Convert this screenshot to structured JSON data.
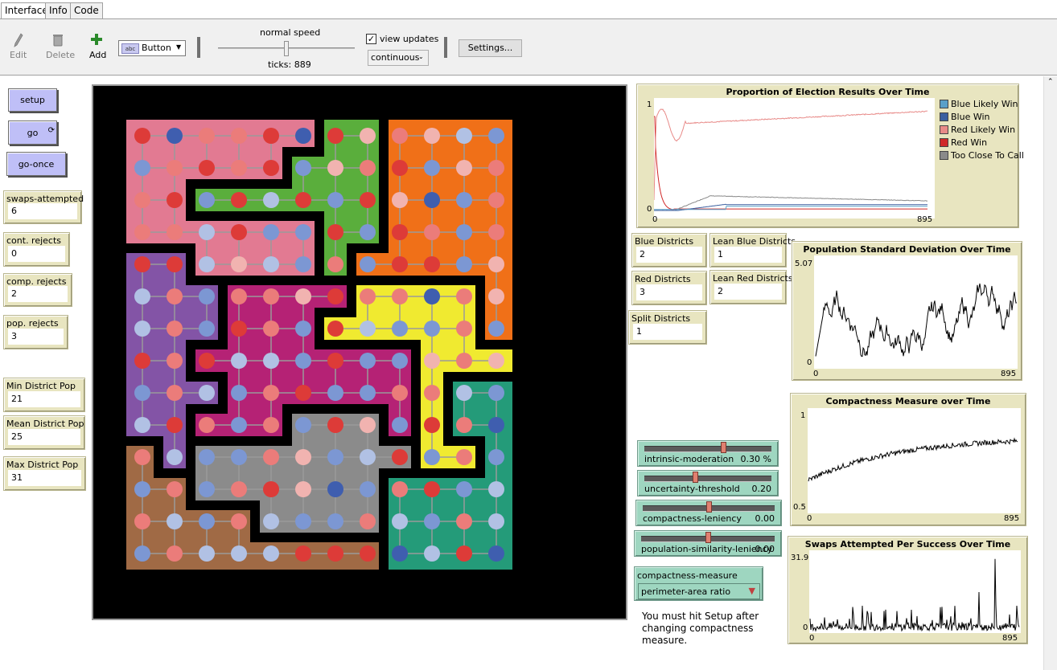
{
  "tabs": [
    {
      "label": "Interface"
    },
    {
      "label": "Info"
    },
    {
      "label": "Code"
    }
  ],
  "toolbar": {
    "edit_label": "Edit",
    "delete_label": "Delete",
    "add_label": "Add",
    "widget_type": "Button",
    "widget_type_icon_text": "abc",
    "speed_label": "normal speed",
    "speed_level": 0.5,
    "ticks_label": "ticks: 889",
    "view_updates_label": "view updates",
    "view_updates_checked": true,
    "update_mode": "continuous",
    "settings_label": "Settings..."
  },
  "buttons": {
    "setup": "setup",
    "go": "go",
    "go_once": "go-once"
  },
  "monitors": [
    {
      "label": "swaps-attempted",
      "value": "6"
    },
    {
      "label": "cont. rejects",
      "value": "0"
    },
    {
      "label": "comp. rejects",
      "value": "2"
    },
    {
      "label": "pop. rejects",
      "value": "3"
    },
    {
      "label": "Min District Pop",
      "value": "21"
    },
    {
      "label": "Mean District Pop",
      "value": "25"
    },
    {
      "label": "Max District Pop",
      "value": "31"
    }
  ],
  "district_monitors": [
    {
      "label": "Blue Districts",
      "value": "2"
    },
    {
      "label": "Lean Blue Districts",
      "value": "1"
    },
    {
      "label": "Red Districts",
      "value": "3"
    },
    {
      "label": "Lean Red Districts",
      "value": "2"
    },
    {
      "label": "Split Districts",
      "value": "1"
    }
  ],
  "sliders": [
    {
      "label": "intrinsic-moderation",
      "value": "0.30 %",
      "level": 0.63
    },
    {
      "label": "uncertainty-threshold",
      "value": "0.20",
      "level": 0.4
    },
    {
      "label": "compactness-leniency",
      "value": "0.00",
      "level": 0.5
    },
    {
      "label": "population-similarity-leniency",
      "value": "0.00",
      "level": 0.5
    }
  ],
  "chooser": {
    "label": "compactness-measure",
    "value": "perimeter-area ratio"
  },
  "note": "You must hit Setup after changing compactness measure.",
  "plots": {
    "election": {
      "title": "Proportion of Election Results Over Time",
      "ymax": "1",
      "ymin": "0",
      "xmin": "0",
      "xmax": "895",
      "legend": [
        {
          "name": "Blue Likely Win",
          "color": "#5aa0c8"
        },
        {
          "name": "Blue Win",
          "color": "#3a5fa0"
        },
        {
          "name": "Red Likely Win",
          "color": "#e88a88"
        },
        {
          "name": "Red Win",
          "color": "#d02828"
        },
        {
          "name": "Too Close To Call",
          "color": "#8a8a8a"
        }
      ]
    },
    "popstd": {
      "title": "Population Standard Deviation Over Time",
      "ymax": "5.07",
      "ymin": "0",
      "xmin": "0",
      "xmax": "895"
    },
    "compact": {
      "title": "Compactness Measure over Time",
      "ymax": "1",
      "ymin": "0.5",
      "xmin": "0",
      "xmax": "895"
    },
    "swaps": {
      "title": "Swaps Attempted Per Success Over Time",
      "ymax": "31.9",
      "ymin": "0",
      "xmin": "0",
      "xmax": "895"
    }
  },
  "world": {
    "district_colors": {
      "A": "#e27a92",
      "G": "#5aae3c",
      "O": "#f07018",
      "P": "#8354a6",
      "M": "#b52275",
      "Y": "#f0ea30",
      "N": "#a06a45",
      "S": "#8b8b8b",
      "T": "#249b79"
    },
    "voter_colors": {
      "R": "#dd3b38",
      "r": "#eb7c7a",
      "p": "#f1b3b0",
      "B": "#3f5eaf",
      "b": "#7c97d3",
      "l": "#b1c1e4"
    },
    "district_rows": [
      "AAAAAAGGOOOO",
      "AAAAAGGGOOOO",
      "AAGGGGGGOOOO",
      "AAAAAAGGOOOO",
      "PPAAAAGOOOOO",
      "PPPMMMMYYYYO",
      "PPPMMMYYYYYO",
      "PPMMMMMMMYYY",
      "PPPMMMMMMYTT",
      "PPMMMSSSMYTT",
      "NPSSSSSSSYYT",
      "NNSSSSSSTTTT",
      "NNNNSSSSTTTT",
      "NNNNNNNNTTTT"
    ],
    "voter_rows": [
      "RBrrRBRprplb",
      "brRrRbprRbpr",
      "rRbRlRbRpBbr",
      "rrlRbbRbRrbr",
      "RRlplbrbRRbp",
      "lrbrrpRrrBrp",
      "lrbRrbRlbbrb",
      "RrRllbRbbprp",
      "brlbrRbbrrlb",
      "lRrbrbRpbRrB",
      "rlbbrpblRbrb",
      "brbrRpBbrRbl",
      "rlbrlbbrlbrl",
      "brlllRRRBlRB"
    ]
  }
}
